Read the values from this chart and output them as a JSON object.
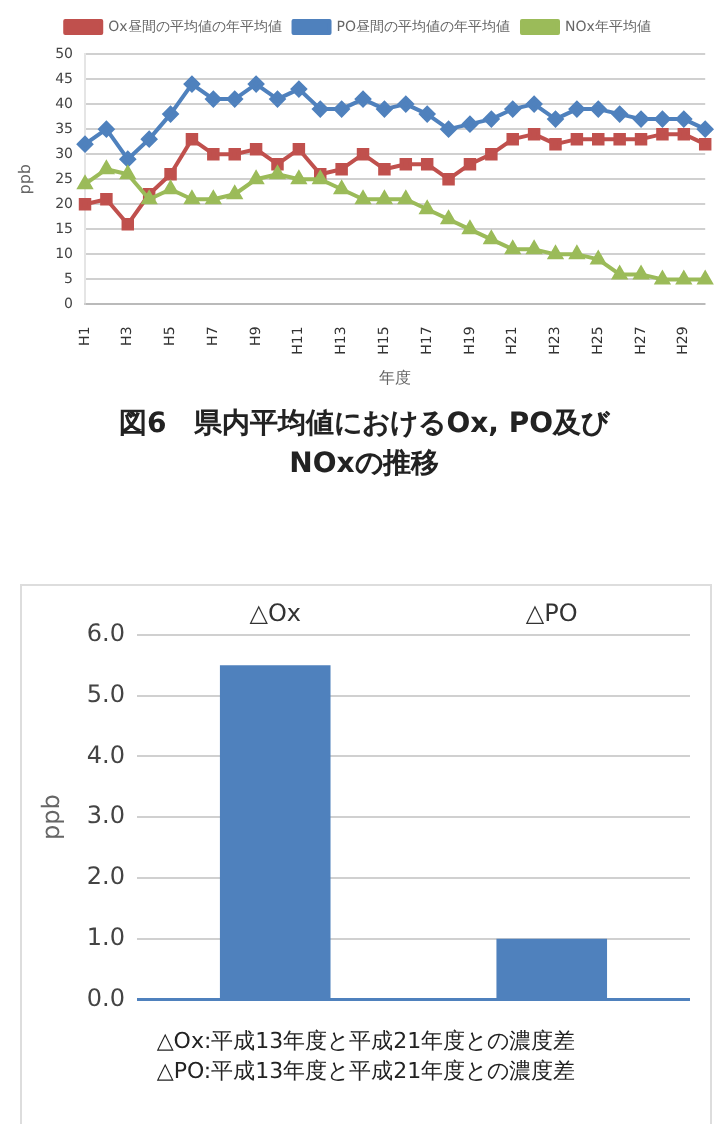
{
  "chart_data": [
    {
      "type": "line",
      "xlabel": "年度",
      "ylabel": "ppb",
      "categories": [
        "H1",
        null,
        "H3",
        null,
        "H5",
        null,
        "H7",
        null,
        "H9",
        null,
        "H11",
        null,
        "H13",
        null,
        "H15",
        null,
        "H17",
        null,
        "H19",
        null,
        "H21",
        null,
        "H23",
        null,
        "H25",
        null,
        "H27",
        null,
        "H29",
        null
      ],
      "series": [
        {
          "name": "Ox昼間の平均値の年平均値",
          "color": "#c0504d",
          "marker": "square",
          "values": [
            20,
            21,
            16,
            22,
            26,
            33,
            30,
            30,
            31,
            28,
            31,
            26,
            27,
            30,
            27,
            28,
            28,
            25,
            28,
            30,
            33,
            34,
            32,
            33,
            33,
            33,
            33,
            34,
            34,
            32
          ]
        },
        {
          "name": "PO昼間の平均値の年平均値",
          "color": "#4f81bd",
          "marker": "diamond",
          "values": [
            32,
            35,
            29,
            33,
            38,
            44,
            41,
            41,
            44,
            41,
            43,
            39,
            39,
            41,
            39,
            40,
            38,
            35,
            36,
            37,
            39,
            40,
            37,
            39,
            39,
            38,
            37,
            37,
            37,
            35
          ]
        },
        {
          "name": "NOx年平均値",
          "color": "#9bbb59",
          "marker": "triangle",
          "values": [
            24,
            27,
            26,
            21,
            23,
            21,
            21,
            22,
            25,
            26,
            25,
            25,
            23,
            21,
            21,
            21,
            19,
            17,
            15,
            13,
            11,
            11,
            10,
            10,
            9,
            6,
            6,
            5,
            5,
            5
          ]
        }
      ],
      "ylim": [
        0,
        50
      ],
      "yticks": [
        0,
        5,
        10,
        15,
        20,
        25,
        30,
        35,
        40,
        45,
        50
      ],
      "grid": "y",
      "legend": "top",
      "annotations": [
        "図6　県内平均値におけるOx, PO及び\nNOxの推移"
      ]
    },
    {
      "type": "bar",
      "ylabel": "ppb",
      "categories": [
        "△Ox",
        "△PO"
      ],
      "values": [
        5.5,
        1.0
      ],
      "color": "#4f81bd",
      "ylim": [
        0,
        6
      ],
      "yticks": [
        {
          "value": 0,
          "label": "0.0"
        },
        {
          "value": 1,
          "label": "1.0"
        },
        {
          "value": 2,
          "label": "2.0"
        },
        {
          "value": 3,
          "label": "3.0"
        },
        {
          "value": 4,
          "label": "4.0"
        },
        {
          "value": 5,
          "label": "5.0"
        },
        {
          "value": 6,
          "label": "6.0"
        }
      ],
      "grid": "y",
      "annotations": [
        "△Ox:平成13年度と平成21年度との濃度差\n△PO:平成13年度と平成21年度との濃度差"
      ]
    }
  ]
}
